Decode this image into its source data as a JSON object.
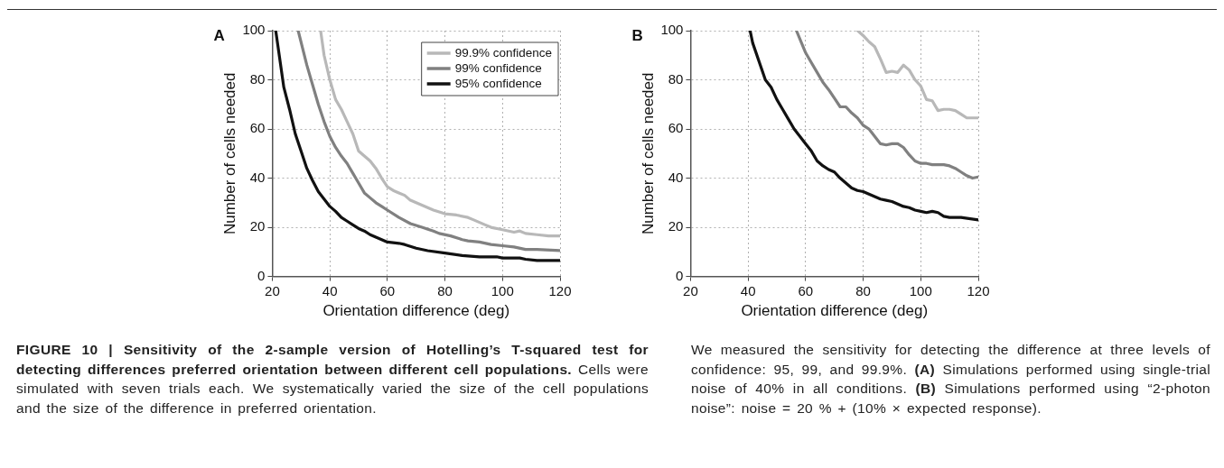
{
  "chart_data": [
    {
      "type": "line",
      "title": "A",
      "xlabel": "Orientation difference (deg)",
      "ylabel": "Number of cells needed",
      "xlim": [
        20,
        120
      ],
      "xticks": [
        20,
        40,
        60,
        80,
        100,
        120
      ],
      "ylim": [
        0,
        100
      ],
      "yticks": [
        0,
        20,
        40,
        60,
        80,
        100
      ],
      "grid": true,
      "legend": "top right",
      "marker": "none",
      "line_style": "solid",
      "series": [
        {
          "name": "99.9% confidence",
          "color": "#b8b8b8",
          "x": [
            36.8,
            38,
            40,
            42,
            44,
            46,
            48,
            50,
            52,
            54,
            56,
            58,
            60,
            62,
            64,
            66,
            68,
            72,
            76,
            80,
            84,
            88,
            90,
            94,
            96,
            100,
            104,
            106,
            108,
            112,
            116,
            120
          ],
          "values": [
            100,
            90,
            80,
            72,
            68,
            63,
            58,
            51,
            49,
            47,
            44,
            40,
            36.5,
            35,
            34,
            33,
            31,
            29,
            27,
            25.5,
            25,
            24,
            23,
            21,
            20,
            19,
            18,
            18.5,
            17.5,
            17,
            16.5,
            16.5
          ]
        },
        {
          "name": "99% confidence",
          "color": "#808080",
          "x": [
            29,
            32,
            34,
            36,
            38,
            40,
            42,
            44,
            46,
            48,
            50,
            52,
            54,
            56,
            58,
            60,
            64,
            68,
            72,
            76,
            78,
            82,
            86,
            88,
            92,
            96,
            100,
            104,
            108,
            112,
            120
          ],
          "values": [
            100,
            86,
            78,
            70,
            63,
            57,
            52.5,
            49,
            46,
            42,
            38,
            34,
            32,
            30,
            28.5,
            27,
            24,
            21.5,
            20,
            18.5,
            17.5,
            16.5,
            15,
            14.5,
            14,
            13,
            12.5,
            12,
            11,
            11,
            10.5
          ]
        },
        {
          "name": "95% confidence",
          "color": "#111111",
          "x": [
            21.2,
            24,
            26,
            28,
            30,
            32,
            34,
            36,
            38,
            40,
            42,
            44,
            46,
            48,
            50,
            52,
            54,
            56,
            58,
            60,
            64,
            66,
            70,
            74,
            80,
            86,
            92,
            98,
            100,
            106,
            108,
            112,
            120
          ],
          "values": [
            100,
            77,
            68,
            58,
            51,
            44,
            39,
            34.5,
            31.5,
            28.5,
            26.5,
            24,
            22.5,
            21,
            19.5,
            18.5,
            17,
            16,
            15,
            14,
            13.5,
            13,
            11.5,
            10.5,
            9.5,
            8.5,
            8,
            8,
            7.5,
            7.5,
            7,
            6.5,
            6.5
          ]
        }
      ],
      "annotations": [
        "FIGURE 10 | Sensitivity of the 2-sample version of Hotelling’s T-squared test for detecting differences preferred orientation between different cell populations.",
        "Cells were simulated with seven trials each. We systematically varied the size of the cell populations and the size of the difference in preferred orientation."
      ]
    },
    {
      "type": "line",
      "title": "B",
      "xlabel": "Orientation difference (deg)",
      "ylabel": "Number of cells needed",
      "xlim": [
        20,
        120
      ],
      "xticks": [
        20,
        40,
        60,
        80,
        100,
        120
      ],
      "ylim": [
        0,
        100
      ],
      "yticks": [
        0,
        20,
        40,
        60,
        80,
        100
      ],
      "grid": true,
      "legend": false,
      "marker": "none",
      "line_style": "solid",
      "series": [
        {
          "color": "#b8b8b8",
          "x": [
            78.1,
            80,
            82,
            84,
            86,
            88,
            90,
            92,
            94,
            96,
            98,
            100,
            102,
            104,
            106,
            108,
            110,
            112,
            114,
            116,
            120
          ],
          "values": [
            100,
            98,
            95.5,
            93.5,
            88.5,
            83,
            83.5,
            83,
            86,
            84,
            80,
            77.5,
            72,
            71.5,
            67.5,
            68,
            68,
            67.5,
            66,
            64.5,
            64.5
          ]
        },
        {
          "color": "#808080",
          "x": [
            56.8,
            60,
            62,
            64,
            66,
            68,
            70,
            72,
            74,
            76,
            78,
            80,
            82,
            84,
            86,
            88,
            90,
            92,
            94,
            96,
            98,
            100,
            102,
            104,
            108,
            110,
            112,
            114,
            116,
            118,
            120
          ],
          "values": [
            100,
            91,
            87,
            83,
            79,
            76,
            72.5,
            69,
            69,
            66.5,
            64.5,
            61.5,
            60,
            57,
            54,
            53.5,
            54,
            54,
            52.5,
            49.5,
            47,
            46,
            46,
            45.5,
            45.5,
            45,
            44,
            42.5,
            41,
            40,
            40.5
          ]
        },
        {
          "color": "#111111",
          "x": [
            40.7,
            41.6,
            46,
            48,
            50,
            52,
            54,
            56,
            58,
            60,
            62,
            64,
            66,
            68,
            70,
            72,
            74,
            76,
            78,
            80,
            82,
            84,
            86,
            88,
            90,
            92,
            94,
            96,
            98,
            100,
            102,
            104,
            106,
            108,
            110,
            114,
            120
          ],
          "values": [
            100,
            95,
            80,
            77,
            72,
            68,
            64,
            60,
            57,
            54,
            51,
            47,
            45,
            43.5,
            42.5,
            40,
            38,
            36,
            35,
            34.5,
            33.5,
            32.5,
            31.5,
            31,
            30.5,
            29.5,
            28.5,
            28,
            27,
            26.5,
            26,
            26.5,
            26,
            24.5,
            24,
            24,
            23
          ]
        }
      ],
      "annotations": [
        "We measured the sensitivity for detecting the difference at three levels of confidence: 95, 99, and 99.9%.",
        "(A)",
        "Simulations performed using single-trial noise of 40% in all conditions.",
        "(B)",
        "Simulations performed using “2-photon noise”: noise = 20 % + (10% × expected response)."
      ]
    }
  ]
}
